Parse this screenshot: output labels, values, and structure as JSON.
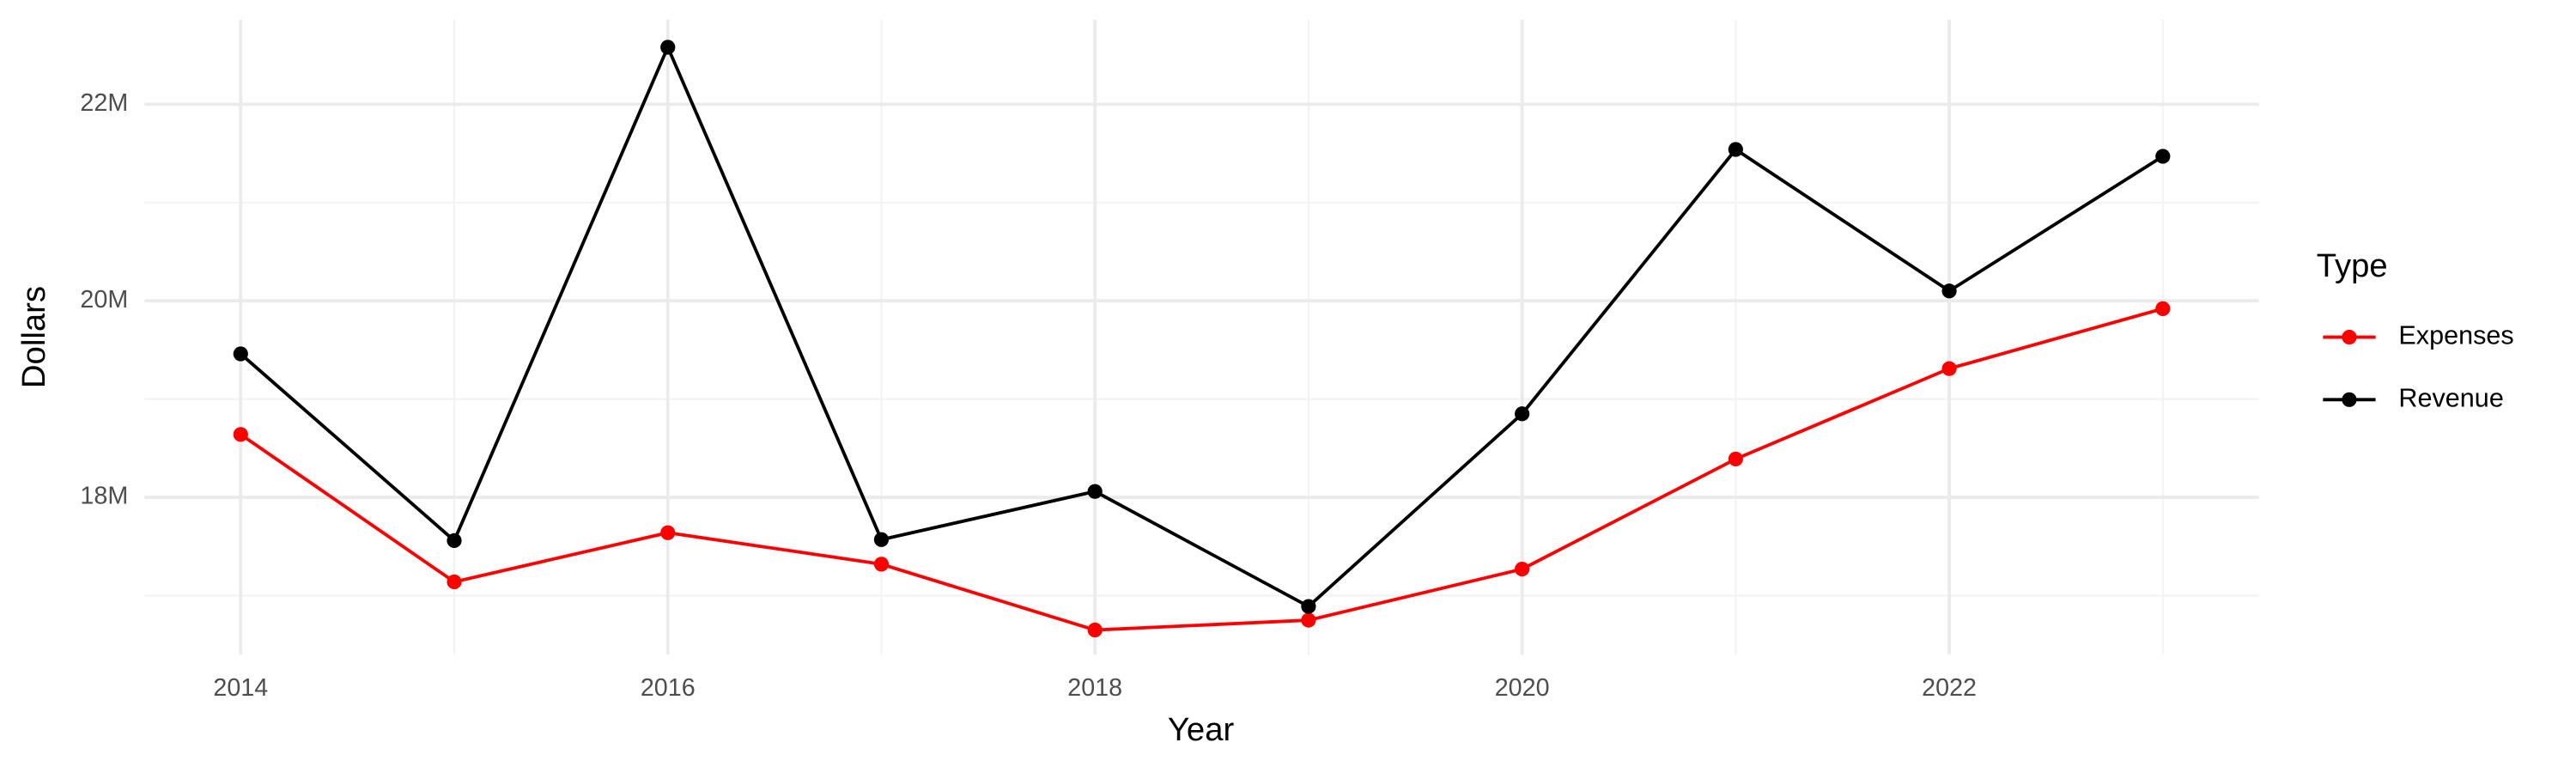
{
  "chart_data": {
    "type": "line",
    "x_label": "Year",
    "y_label": "Dollars",
    "legend_title": "Type",
    "x": [
      2014,
      2015,
      2016,
      2017,
      2018,
      2019,
      2020,
      2021,
      2022,
      2023
    ],
    "series": [
      {
        "name": "Expenses",
        "color": "#ff0000",
        "values": [
          18640000,
          17140000,
          17640000,
          17320000,
          16650000,
          16750000,
          17270000,
          18390000,
          19310000,
          19920000
        ]
      },
      {
        "name": "Revenue",
        "color": "#000000",
        "values": [
          19460000,
          17560000,
          22580000,
          17570000,
          18060000,
          16890000,
          18850000,
          21540000,
          20100000,
          21470000
        ]
      }
    ],
    "xlim": [
      2013.55,
      2023.45
    ],
    "xticks": [
      2014,
      2016,
      2018,
      2020,
      2022
    ],
    "ylim": [
      16400000,
      22860000
    ],
    "yticks": [
      {
        "value": 18000000,
        "label": "18M"
      },
      {
        "value": 20000000,
        "label": "20M"
      },
      {
        "value": 22000000,
        "label": "22M"
      }
    ],
    "grid": true,
    "legend": "right"
  }
}
